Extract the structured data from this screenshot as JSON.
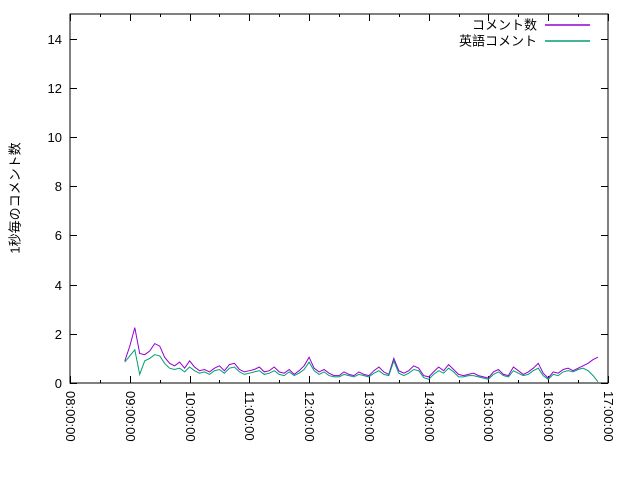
{
  "chart_data": {
    "type": "line",
    "title": "",
    "xlabel": "",
    "ylabel": "1秒毎のコメント数",
    "grid": false,
    "background_color": "#ffffff",
    "frame_color": "#000000",
    "legend_position": "top-right-inside",
    "x_axis": {
      "min": "08:00:00",
      "max": "17:00:00",
      "tick_labels": [
        "08:00:00",
        "09:00:00",
        "10:00:00",
        "11:00:00",
        "12:00:00",
        "13:00:00",
        "14:00:00",
        "15:00:00",
        "16:00:00",
        "17:00:00"
      ],
      "tick_label_rotation_deg": 90,
      "minor_tick_minutes": 30
    },
    "y_axis": {
      "min": 0,
      "max": 15,
      "tick_labels": [
        "0",
        "2",
        "4",
        "6",
        "8",
        "10",
        "12",
        "14"
      ]
    },
    "x_start": "08:55:00",
    "x_interval_seconds": 300,
    "series": [
      {
        "name": "コメント数",
        "color": "#9400d3",
        "values": [
          0.9,
          1.5,
          2.25,
          1.2,
          1.15,
          1.3,
          1.6,
          1.5,
          1.05,
          0.8,
          0.7,
          0.85,
          0.6,
          0.9,
          0.65,
          0.5,
          0.55,
          0.45,
          0.6,
          0.7,
          0.5,
          0.75,
          0.8,
          0.55,
          0.45,
          0.5,
          0.55,
          0.65,
          0.45,
          0.5,
          0.65,
          0.45,
          0.4,
          0.55,
          0.35,
          0.5,
          0.7,
          1.05,
          0.6,
          0.45,
          0.55,
          0.4,
          0.3,
          0.3,
          0.45,
          0.35,
          0.3,
          0.45,
          0.35,
          0.3,
          0.5,
          0.65,
          0.45,
          0.35,
          1.0,
          0.5,
          0.4,
          0.5,
          0.7,
          0.6,
          0.3,
          0.25,
          0.45,
          0.65,
          0.5,
          0.75,
          0.55,
          0.35,
          0.3,
          0.35,
          0.4,
          0.3,
          0.25,
          0.2,
          0.45,
          0.55,
          0.35,
          0.3,
          0.65,
          0.5,
          0.35,
          0.45,
          0.6,
          0.8,
          0.4,
          0.2,
          0.45,
          0.4,
          0.55,
          0.6,
          0.5,
          0.6,
          0.7,
          0.8,
          0.95,
          1.05
        ]
      },
      {
        "name": "英語コメント",
        "color": "#009e73",
        "values": [
          0.85,
          1.1,
          1.35,
          0.35,
          0.9,
          1.0,
          1.15,
          1.1,
          0.8,
          0.6,
          0.55,
          0.6,
          0.45,
          0.65,
          0.5,
          0.4,
          0.45,
          0.35,
          0.5,
          0.55,
          0.4,
          0.6,
          0.65,
          0.45,
          0.35,
          0.4,
          0.45,
          0.5,
          0.35,
          0.4,
          0.5,
          0.35,
          0.3,
          0.45,
          0.3,
          0.4,
          0.55,
          0.85,
          0.5,
          0.35,
          0.45,
          0.3,
          0.25,
          0.25,
          0.35,
          0.3,
          0.25,
          0.35,
          0.3,
          0.25,
          0.4,
          0.5,
          0.35,
          0.3,
          0.9,
          0.4,
          0.3,
          0.4,
          0.55,
          0.5,
          0.22,
          0.15,
          0.35,
          0.5,
          0.4,
          0.6,
          0.45,
          0.25,
          0.25,
          0.3,
          0.3,
          0.25,
          0.2,
          0.15,
          0.35,
          0.45,
          0.3,
          0.25,
          0.5,
          0.4,
          0.3,
          0.35,
          0.5,
          0.6,
          0.3,
          0.15,
          0.35,
          0.3,
          0.45,
          0.5,
          0.45,
          0.55,
          0.6,
          0.5,
          0.3,
          0.05
        ]
      }
    ]
  }
}
